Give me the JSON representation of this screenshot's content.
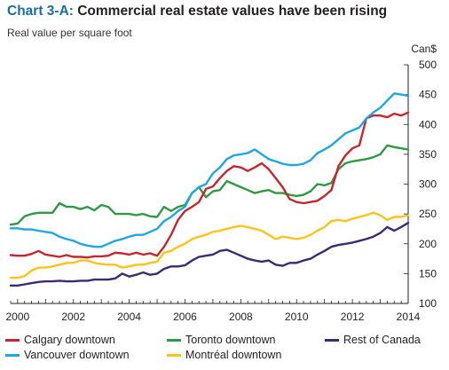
{
  "chart_data": {
    "type": "line",
    "title_prefix": "Chart 3-A:",
    "title": "Commercial real estate values have been rising",
    "subtitle": "Real value per square foot",
    "unit_label": "Can$",
    "xlim": [
      1999.75,
      2014.0
    ],
    "ylim": [
      100,
      500
    ],
    "x_ticks": [
      2000,
      2002,
      2004,
      2006,
      2008,
      2010,
      2012,
      2014
    ],
    "y_ticks": [
      100,
      150,
      200,
      250,
      300,
      350,
      400,
      450,
      500
    ],
    "grid": false,
    "legend_position": "bottom",
    "x": [
      1999.75,
      2000.0,
      2000.25,
      2000.5,
      2000.75,
      2001.0,
      2001.25,
      2001.5,
      2001.75,
      2002.0,
      2002.25,
      2002.5,
      2002.75,
      2003.0,
      2003.25,
      2003.5,
      2003.75,
      2004.0,
      2004.25,
      2004.5,
      2004.75,
      2005.0,
      2005.25,
      2005.5,
      2005.75,
      2006.0,
      2006.25,
      2006.5,
      2006.75,
      2007.0,
      2007.25,
      2007.5,
      2007.75,
      2008.0,
      2008.25,
      2008.5,
      2008.75,
      2009.0,
      2009.25,
      2009.5,
      2009.75,
      2010.0,
      2010.25,
      2010.5,
      2010.75,
      2011.0,
      2011.25,
      2011.5,
      2011.75,
      2012.0,
      2012.25,
      2012.5,
      2012.75,
      2013.0,
      2013.25,
      2013.5,
      2013.75,
      2014.0
    ],
    "series": [
      {
        "name": "Calgary downtown",
        "color": "#c8262e",
        "values": [
          181,
          180,
          180,
          183,
          188,
          182,
          180,
          178,
          181,
          178,
          178,
          177,
          179,
          179,
          180,
          185,
          184,
          182,
          185,
          182,
          184,
          180,
          195,
          215,
          240,
          255,
          262,
          270,
          292,
          296,
          310,
          322,
          330,
          328,
          322,
          328,
          335,
          325,
          310,
          295,
          275,
          270,
          268,
          270,
          272,
          280,
          290,
          330,
          348,
          360,
          365,
          410,
          415,
          415,
          412,
          418,
          415,
          420
        ]
      },
      {
        "name": "Toronto downtown",
        "color": "#2e9a44",
        "values": [
          232,
          234,
          246,
          250,
          252,
          252,
          252,
          268,
          262,
          262,
          258,
          262,
          256,
          265,
          262,
          250,
          250,
          250,
          248,
          250,
          246,
          245,
          262,
          255,
          262,
          265,
          285,
          295,
          278,
          288,
          290,
          305,
          300,
          295,
          290,
          285,
          288,
          290,
          285,
          285,
          282,
          280,
          282,
          288,
          300,
          298,
          302,
          325,
          335,
          338,
          340,
          342,
          345,
          350,
          365,
          362,
          360,
          358
        ]
      },
      {
        "name": "Rest of Canada",
        "color": "#3c2a73",
        "values": [
          130,
          130,
          132,
          134,
          136,
          137,
          137,
          138,
          137,
          137,
          138,
          138,
          140,
          140,
          140,
          142,
          150,
          145,
          148,
          152,
          148,
          150,
          158,
          162,
          162,
          164,
          172,
          178,
          180,
          182,
          188,
          190,
          185,
          180,
          175,
          172,
          170,
          172,
          165,
          163,
          168,
          168,
          172,
          175,
          182,
          188,
          195,
          198,
          200,
          202,
          205,
          208,
          212,
          218,
          228,
          222,
          228,
          235
        ]
      },
      {
        "name": "Vancouver downtown",
        "color": "#1fa7e1",
        "values": [
          226,
          226,
          224,
          224,
          222,
          220,
          218,
          212,
          208,
          205,
          200,
          197,
          195,
          195,
          200,
          205,
          208,
          212,
          215,
          215,
          220,
          225,
          238,
          245,
          255,
          262,
          285,
          295,
          300,
          318,
          328,
          342,
          348,
          350,
          352,
          358,
          350,
          342,
          338,
          334,
          332,
          332,
          334,
          340,
          352,
          358,
          365,
          375,
          385,
          390,
          395,
          410,
          420,
          428,
          440,
          452,
          450,
          448
        ]
      },
      {
        "name": "Montréal downtown",
        "color": "#fcc419",
        "values": [
          143,
          143,
          146,
          155,
          160,
          160,
          162,
          165,
          168,
          168,
          172,
          172,
          168,
          166,
          165,
          165,
          160,
          162,
          165,
          165,
          168,
          170,
          185,
          188,
          195,
          200,
          208,
          212,
          215,
          220,
          222,
          225,
          228,
          230,
          228,
          225,
          222,
          215,
          208,
          212,
          210,
          208,
          210,
          215,
          222,
          228,
          238,
          240,
          238,
          242,
          245,
          248,
          252,
          248,
          240,
          245,
          245,
          248
        ]
      }
    ]
  }
}
